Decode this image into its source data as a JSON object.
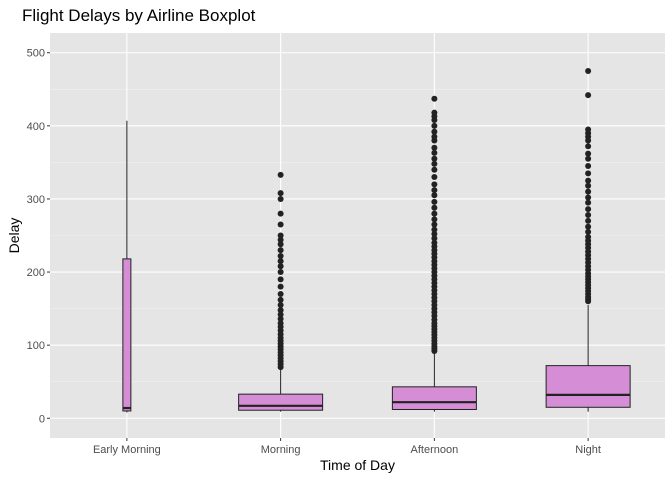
{
  "chart_data": {
    "type": "boxplot",
    "title": "Flight Delays by Airline Boxplot",
    "xlabel": "Time of Day",
    "ylabel": "Delay",
    "ylim": [
      -27,
      527
    ],
    "yticks": [
      0,
      100,
      200,
      300,
      400,
      500
    ],
    "grid": true,
    "legend": "none",
    "colors": {
      "panel": "#e5e5e5",
      "grid_major": "#ffffff",
      "grid_minor": "#f0f0f0",
      "box_fill": "#d58ed5",
      "box_stroke": "#222222",
      "outlier": "#222222",
      "tick_text": "#4d4d4d"
    },
    "categories": [
      "Early Morning",
      "Morning",
      "Afternoon",
      "Night"
    ],
    "boxes": [
      {
        "category": "Early Morning",
        "min": 8,
        "q1": 10,
        "median": 14,
        "q3": 218,
        "max": 407,
        "outliers": []
      },
      {
        "category": "Morning",
        "min": 9,
        "q1": 11,
        "median": 17,
        "q3": 33,
        "max": 66,
        "outliers": [
          70,
          74,
          78,
          82,
          86,
          90,
          94,
          98,
          102,
          106,
          110,
          115,
          120,
          125,
          130,
          136,
          142,
          148,
          155,
          162,
          170,
          180,
          190,
          200,
          208,
          215,
          222,
          230,
          238,
          244,
          250,
          265,
          280,
          300,
          308,
          333
        ]
      },
      {
        "category": "Afternoon",
        "min": 9,
        "q1": 12,
        "median": 22,
        "q3": 43,
        "max": 90,
        "outliers": [
          92,
          95,
          98,
          102,
          106,
          110,
          114,
          118,
          122,
          126,
          130,
          135,
          140,
          145,
          150,
          155,
          160,
          165,
          170,
          175,
          180,
          185,
          190,
          195,
          200,
          205,
          210,
          215,
          220,
          225,
          230,
          235,
          240,
          246,
          252,
          258,
          265,
          272,
          280,
          288,
          296,
          305,
          312,
          320,
          330,
          340,
          348,
          355,
          363,
          370,
          380,
          385,
          392,
          400,
          408,
          413,
          418,
          437
        ]
      },
      {
        "category": "Night",
        "min": 9,
        "q1": 15,
        "median": 32,
        "q3": 72,
        "max": 155,
        "outliers": [
          160,
          163,
          166,
          170,
          174,
          178,
          182,
          186,
          190,
          194,
          198,
          203,
          208,
          213,
          218,
          223,
          228,
          233,
          238,
          243,
          248,
          255,
          262,
          270,
          278,
          286,
          295,
          302,
          310,
          318,
          325,
          335,
          345,
          355,
          362,
          372,
          380,
          385,
          390,
          395,
          442,
          475
        ]
      }
    ]
  }
}
